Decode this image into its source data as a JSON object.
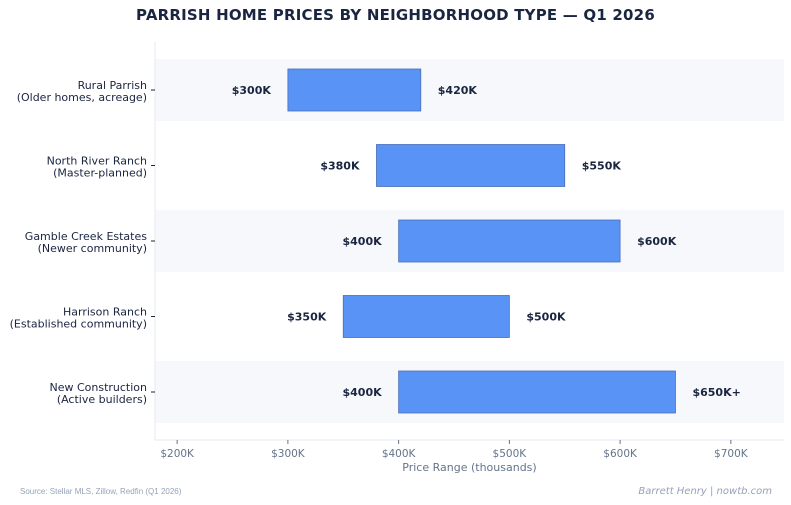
{
  "chart_data": {
    "type": "bar",
    "orientation": "horizontal",
    "subtype": "floating-range",
    "title": "PARRISH HOME PRICES BY NEIGHBORHOOD TYPE — Q1 2026",
    "xlabel": "Price Range (thousands)",
    "ylabel": "",
    "xlim": [
      180,
      748
    ],
    "x_ticks": [
      200,
      300,
      400,
      500,
      600,
      700
    ],
    "x_tick_labels": [
      "$200K",
      "$300K",
      "$400K",
      "$500K",
      "$600K",
      "$700K"
    ],
    "grid": false,
    "alternating_row_shading": true,
    "bar_color": "#5893f5",
    "categories": [
      [
        "Rural Parrish",
        "(Older homes, acreage)"
      ],
      [
        "North River Ranch",
        "(Master-planned)"
      ],
      [
        "Gamble Creek Estates",
        "(Newer community)"
      ],
      [
        "Harrison Ranch",
        "(Established community)"
      ],
      [
        "New Construction",
        "(Active builders)"
      ]
    ],
    "low": [
      300,
      380,
      400,
      350,
      400
    ],
    "high": [
      420,
      550,
      600,
      500,
      650
    ],
    "low_labels": [
      "$300K",
      "$380K",
      "$400K",
      "$350K",
      "$400K"
    ],
    "high_labels": [
      "$420K",
      "$550K",
      "$600K",
      "$500K",
      "$650K+"
    ]
  },
  "footer": {
    "source": "Source: Stellar MLS, Zillow, Redfin (Q1 2026)",
    "credit": "Barrett Henry | nowtb.com"
  }
}
